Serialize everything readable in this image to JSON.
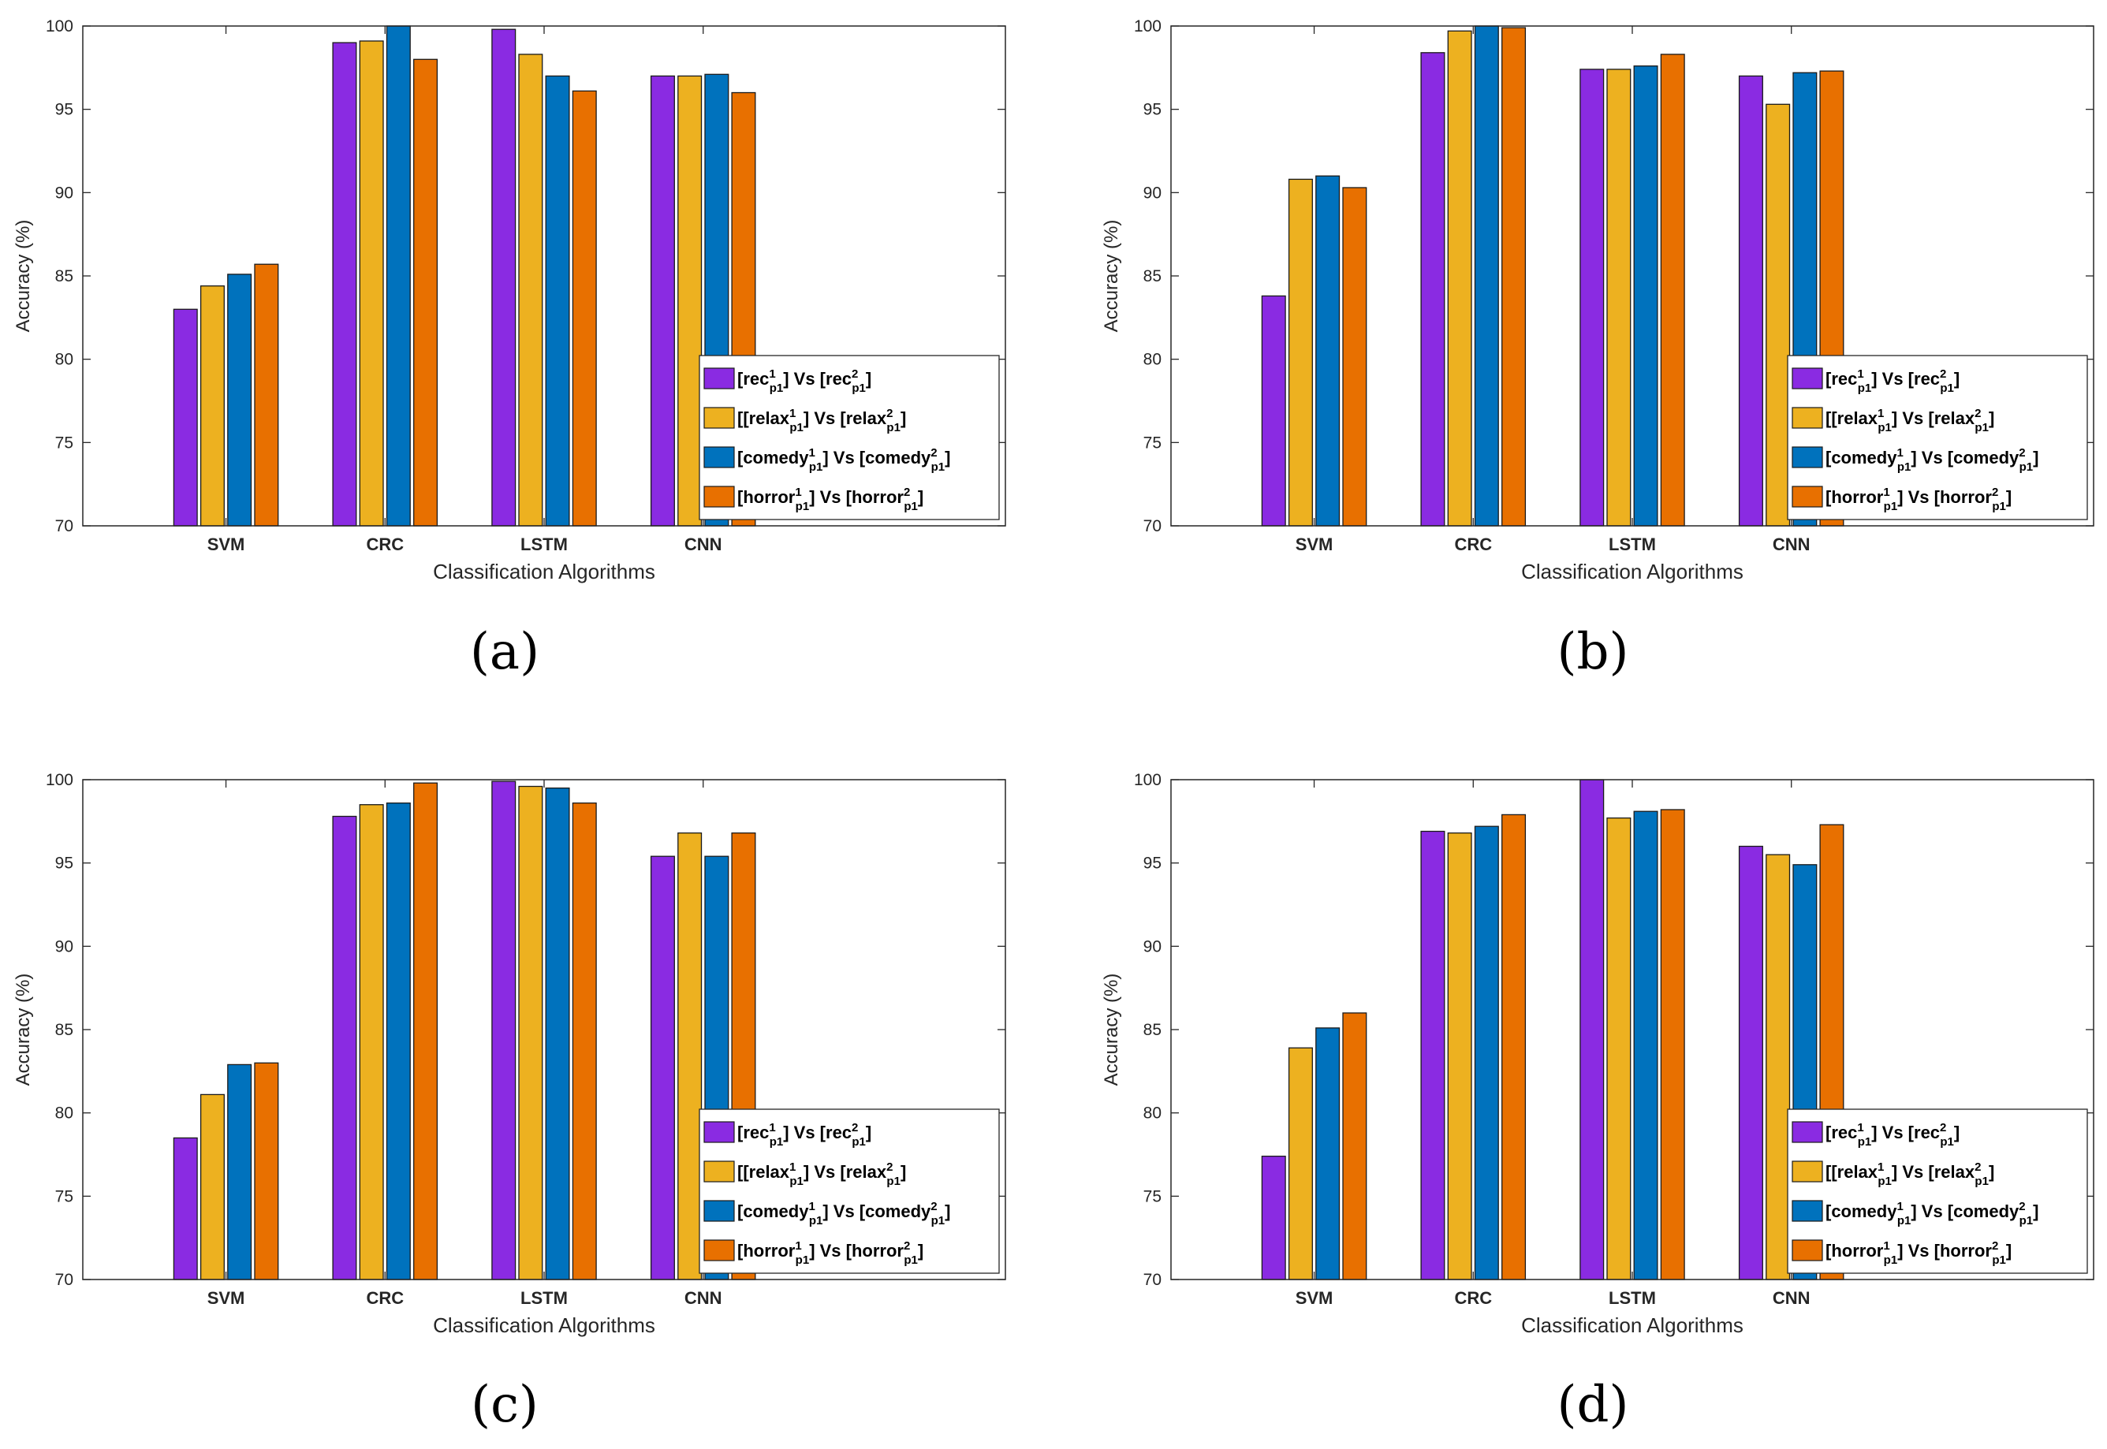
{
  "colors": [
    "#8a2be2",
    "#edb120",
    "#0072bd",
    "#e87000"
  ],
  "series_names": [
    "[rec1p1] Vs [rec2p1]",
    "[[relax1p1] Vs [relax2p1]",
    "[comedy1p1] Vs [comedy2p1]",
    "[horror1p1] Vs [horror2p1]"
  ],
  "legend_items": [
    {
      "pre": "[rec",
      "sup1": "1",
      "sub1": "p1",
      "mid": "] Vs [rec",
      "sup2": "2",
      "sub2": "p1",
      "post": "]"
    },
    {
      "pre": "[[relax",
      "sup1": "1",
      "sub1": "p1",
      "mid": "] Vs [relax",
      "sup2": "2",
      "sub2": "p1",
      "post": "]"
    },
    {
      "pre": "[comedy",
      "sup1": "1",
      "sub1": "p1",
      "mid": "] Vs [comedy",
      "sup2": "2",
      "sub2": "p1",
      "post": "]"
    },
    {
      "pre": "[horror",
      "sup1": "1",
      "sub1": "p1",
      "mid": "] Vs [horror",
      "sup2": "2",
      "sub2": "p1",
      "post": "]"
    }
  ],
  "chart_data": [
    {
      "type": "bar",
      "caption": "(a)",
      "categories": [
        "SVM",
        "CRC",
        "LSTM",
        "CNN"
      ],
      "xlabel": "Classification Algorithms",
      "ylabel": "Accuracy (%)",
      "ylim": [
        70,
        100
      ],
      "yticks": [
        70,
        75,
        80,
        85,
        90,
        95,
        100
      ],
      "legend_position": "bottom-right",
      "series": [
        {
          "name": "[rec1p1] Vs [rec2p1]",
          "values": [
            83.0,
            99.0,
            99.8,
            97.0
          ]
        },
        {
          "name": "[[relax1p1] Vs [relax2p1]",
          "values": [
            84.4,
            99.1,
            98.3,
            97.0
          ]
        },
        {
          "name": "[comedy1p1] Vs [comedy2p1]",
          "values": [
            85.1,
            100.0,
            97.0,
            97.1
          ]
        },
        {
          "name": "[horror1p1] Vs [horror2p1]",
          "values": [
            85.7,
            98.0,
            96.1,
            96.0
          ]
        }
      ]
    },
    {
      "type": "bar",
      "caption": "(b)",
      "categories": [
        "SVM",
        "CRC",
        "LSTM",
        "CNN"
      ],
      "xlabel": "Classification Algorithms",
      "ylabel": "Accuracy (%)",
      "ylim": [
        70,
        100
      ],
      "yticks": [
        70,
        75,
        80,
        85,
        90,
        95,
        100
      ],
      "legend_position": "bottom-right",
      "series": [
        {
          "name": "[rec1p1] Vs [rec2p1]",
          "values": [
            83.8,
            98.4,
            97.4,
            97.0
          ]
        },
        {
          "name": "[[relax1p1] Vs [relax2p1]",
          "values": [
            90.8,
            99.7,
            97.4,
            95.3
          ]
        },
        {
          "name": "[comedy1p1] Vs [comedy2p1]",
          "values": [
            91.0,
            100.0,
            97.6,
            97.2
          ]
        },
        {
          "name": "[horror1p1] Vs [horror2p1]",
          "values": [
            90.3,
            99.9,
            98.3,
            97.3
          ]
        }
      ]
    },
    {
      "type": "bar",
      "caption": "(c)",
      "categories": [
        "SVM",
        "CRC",
        "LSTM",
        "CNN"
      ],
      "xlabel": "Classification Algorithms",
      "ylabel": "Accuracy (%)",
      "ylim": [
        70,
        100
      ],
      "yticks": [
        70,
        75,
        80,
        85,
        90,
        95,
        100
      ],
      "legend_position": "bottom-right",
      "series": [
        {
          "name": "[rec1p1] Vs [rec2p1]",
          "values": [
            78.5,
            97.8,
            99.9,
            95.4
          ]
        },
        {
          "name": "[[relax1p1] Vs [relax2p1]",
          "values": [
            81.1,
            98.5,
            99.6,
            96.8
          ]
        },
        {
          "name": "[comedy1p1] Vs [comedy2p1]",
          "values": [
            82.9,
            98.6,
            99.5,
            95.4
          ]
        },
        {
          "name": "[horror1p1] Vs [horror2p1]",
          "values": [
            83.0,
            99.8,
            98.6,
            96.8
          ]
        }
      ]
    },
    {
      "type": "bar",
      "caption": "(d)",
      "categories": [
        "SVM",
        "CRC",
        "LSTM",
        "CNN"
      ],
      "xlabel": "Classification Algorithms",
      "ylabel": "Accuracy (%)",
      "ylim": [
        70,
        100
      ],
      "yticks": [
        70,
        75,
        80,
        85,
        90,
        95,
        100
      ],
      "legend_position": "bottom-right",
      "series": [
        {
          "name": "[rec1p1] Vs [rec2p1]",
          "values": [
            77.4,
            96.9,
            100.0,
            96.0
          ]
        },
        {
          "name": "[[relax1p1] Vs [relax2p1]",
          "values": [
            83.9,
            96.8,
            97.7,
            95.5
          ]
        },
        {
          "name": "[comedy1p1] Vs [comedy2p1]",
          "values": [
            85.1,
            97.2,
            98.1,
            94.9
          ]
        },
        {
          "name": "[horror1p1] Vs [horror2p1]",
          "values": [
            86.0,
            97.9,
            98.2,
            97.3
          ]
        }
      ]
    }
  ]
}
